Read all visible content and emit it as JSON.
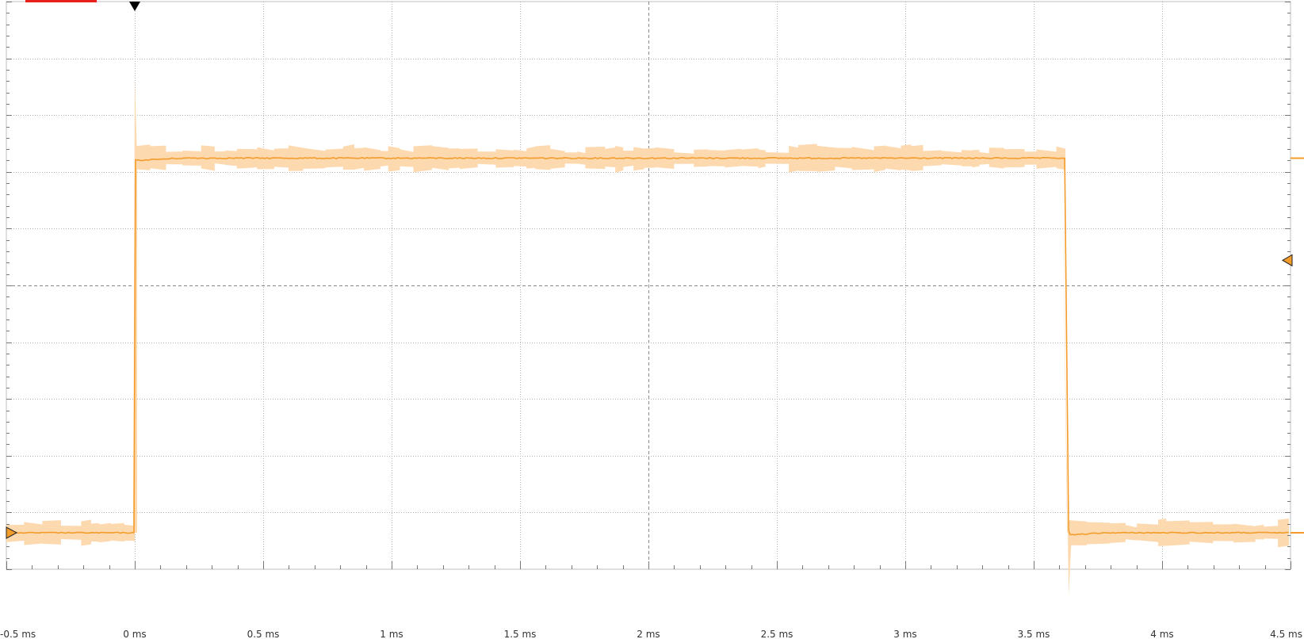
{
  "chart_data": {
    "type": "line",
    "title": "",
    "xlabel": "",
    "ylabel": "",
    "x_unit": "ms",
    "xlim": [
      -0.5,
      4.5
    ],
    "x_ticks": [
      -0.5,
      0,
      0.5,
      1,
      1.5,
      2,
      2.5,
      3,
      3.5,
      4,
      4.5
    ],
    "x_tick_labels": [
      "-0.5 ms",
      "0 ms",
      "0.5 ms",
      "1 ms",
      "1.5 ms",
      "2 ms",
      "2.5 ms",
      "3 ms",
      "3.5 ms",
      "4 ms",
      "4.5 ms"
    ],
    "y_divisions": 10,
    "grid": true,
    "trigger_time": 0,
    "series": [
      {
        "color": "#f39c2a",
        "envelope_color": "#fdd9b0",
        "low_level_div": 0.0,
        "high_level_div": 6.6,
        "envelope_halfwidth_div": 0.22,
        "rise_time_ms": 0.0,
        "fall_time_ms": 3.63,
        "spike_peak_div": 8.0,
        "undershoot_div": -1.1
      }
    ]
  }
}
